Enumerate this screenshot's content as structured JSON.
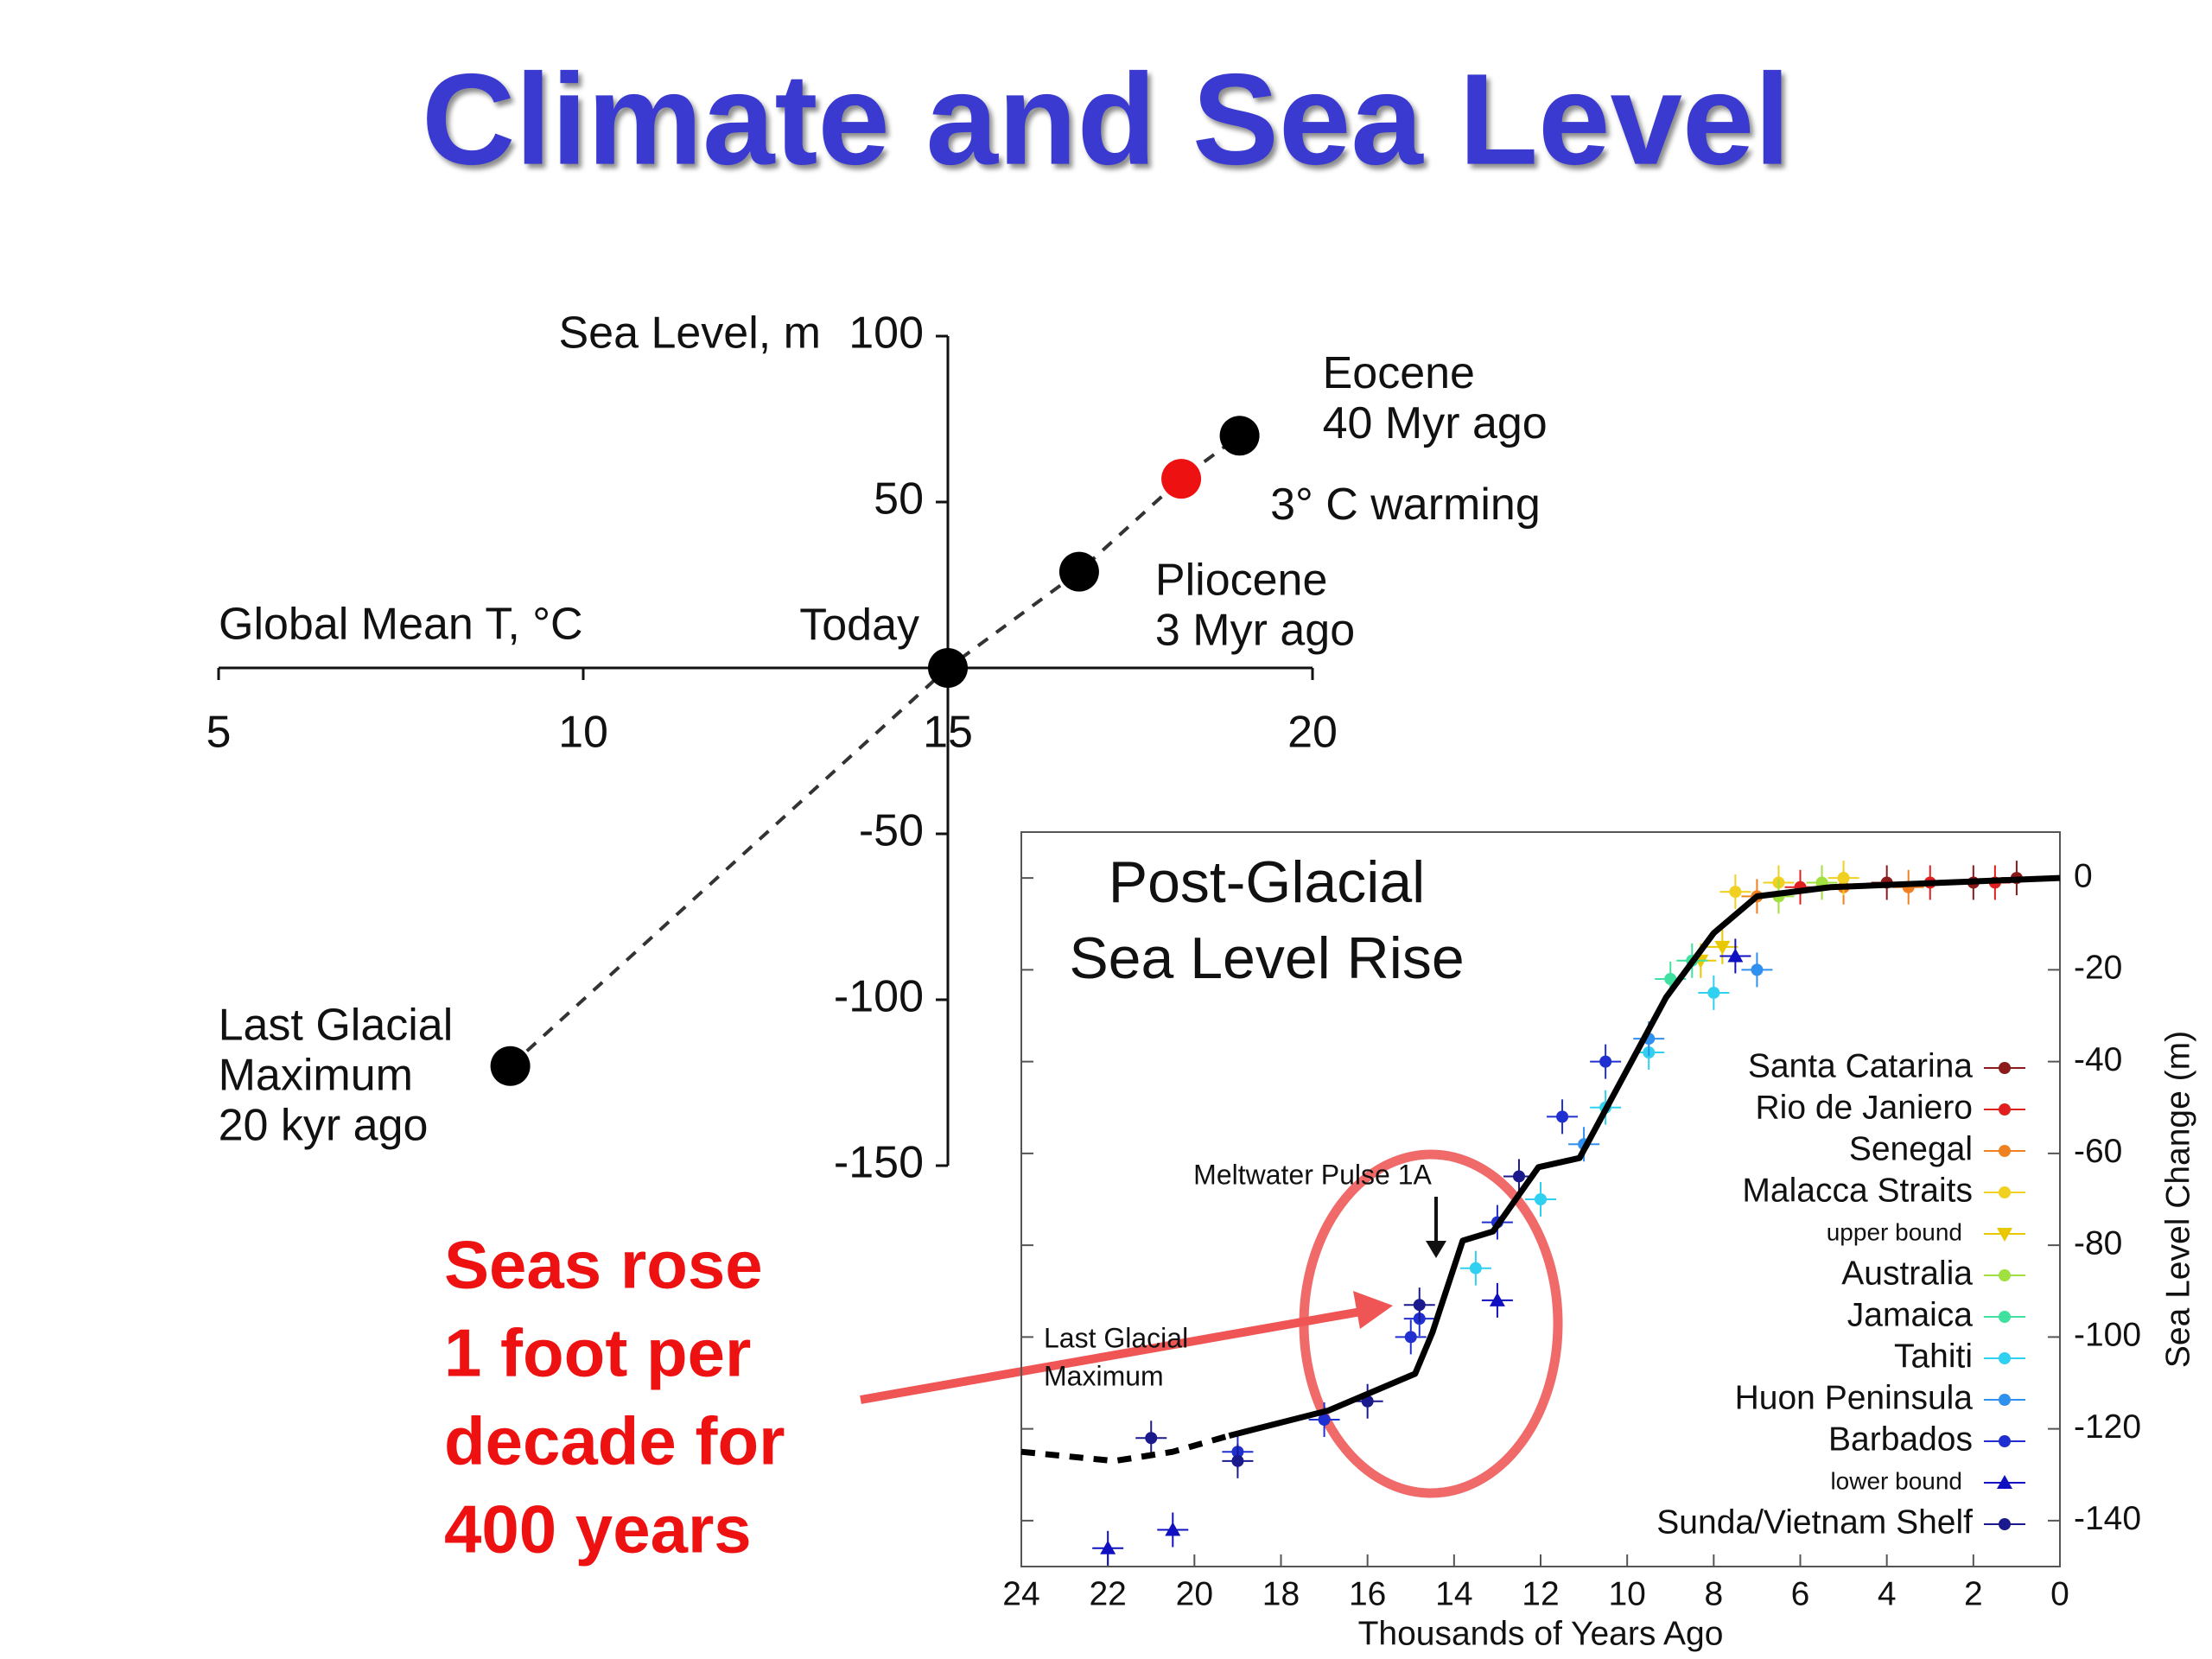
{
  "title": "Climate and Sea Level",
  "annotation": [
    "Seas rose",
    "1 foot per",
    "decade for",
    "400 years"
  ],
  "chart_data": [
    {
      "type": "scatter",
      "x_label": "Global Mean T, °C",
      "y_label": "Sea Level, m",
      "xlim": [
        5,
        20
      ],
      "xticks": [
        5,
        10,
        15,
        20
      ],
      "ylim": [
        -150,
        100
      ],
      "yticks": [
        -150,
        -100,
        -50,
        50,
        100
      ],
      "x": [
        9,
        15,
        16.8,
        18.2,
        19
      ],
      "values": [
        -120,
        0,
        29,
        57,
        70
      ],
      "colors": [
        "#000000",
        "#000000",
        "#000000",
        "#ee1111",
        "#000000"
      ],
      "point_labels": [
        [
          "Last Glacial",
          "Maximum",
          "20 kyr ago"
        ],
        [
          "Today"
        ],
        [
          "Pliocene",
          "3 Myr ago"
        ],
        [
          "3° C warming"
        ],
        [
          "Eocene",
          "40 Myr ago"
        ]
      ],
      "trend_line": "dashed"
    },
    {
      "type": "line",
      "title": [
        "Post-Glacial",
        "Sea Level Rise"
      ],
      "x_label": "Thousands of Years Ago",
      "y_label": "Sea Level Change (m)",
      "xlim": [
        24,
        0
      ],
      "xticks": [
        24,
        22,
        20,
        18,
        16,
        14,
        12,
        10,
        8,
        6,
        4,
        2,
        0
      ],
      "ylim": [
        -150,
        10
      ],
      "yticks": [
        0,
        -20,
        -40,
        -60,
        -80,
        -100,
        -120,
        -140
      ],
      "y_axis_side": "right",
      "annotations": [
        {
          "text": [
            "Meltwater Pulse 1A"
          ],
          "x": 14.5,
          "y": -82
        },
        {
          "text": [
            "Last Glacial",
            "Maximum"
          ],
          "x": 23.5,
          "y": -104
        }
      ],
      "lines": [
        {
          "style": "dashed",
          "color": "#000000",
          "x": [
            24,
            21.85,
            20.5,
            19.2
          ],
          "values": [
            -125,
            -127,
            -125,
            -121.5
          ]
        },
        {
          "style": "solid",
          "color": "#000000",
          "x": [
            19.2,
            16.9,
            14.9,
            14.5,
            13.8,
            13.1,
            12.05,
            11.1,
            9.1,
            8,
            7,
            5.3,
            0
          ],
          "values": [
            -121.5,
            -116,
            -108,
            -99,
            -79,
            -77,
            -63,
            -61,
            -26,
            -12,
            -4,
            -2,
            0
          ]
        }
      ],
      "series": [
        {
          "name": "Santa Catarina",
          "color": "#8b1a1a",
          "marker": "dot",
          "x": [
            4,
            2,
            1
          ],
          "values": [
            -1,
            -1,
            0
          ]
        },
        {
          "name": "Rio de Janiero",
          "color": "#e02020",
          "marker": "dot",
          "x": [
            6,
            3,
            1.5
          ],
          "values": [
            -2,
            -1,
            -1
          ]
        },
        {
          "name": "Senegal",
          "color": "#f08020",
          "marker": "dot",
          "x": [
            7,
            5,
            3.5
          ],
          "values": [
            -4,
            -2,
            -2
          ]
        },
        {
          "name": "Malacca Straits",
          "color": "#f0d020",
          "marker": "dot",
          "x": [
            7.5,
            6.5,
            5
          ],
          "values": [
            -3,
            -1,
            0
          ]
        },
        {
          "name": "upper bound",
          "color": "#e8c800",
          "marker": "triangle-down",
          "x": [
            8.3,
            7.8
          ],
          "values": [
            -18,
            -15
          ]
        },
        {
          "name": "Australia",
          "color": "#a0e040",
          "marker": "dot",
          "x": [
            6.5,
            5.5
          ],
          "values": [
            -4,
            -1
          ]
        },
        {
          "name": "Jamaica",
          "color": "#40e0a0",
          "marker": "dot",
          "x": [
            8.5,
            9
          ],
          "values": [
            -18,
            -22
          ]
        },
        {
          "name": "Tahiti",
          "color": "#30d0f0",
          "marker": "dot",
          "x": [
            13.5,
            12,
            10.5,
            9.5,
            8
          ],
          "values": [
            -85,
            -70,
            -50,
            -38,
            -25
          ]
        },
        {
          "name": "Huon Peninsula",
          "color": "#3090f0",
          "marker": "dot",
          "x": [
            11,
            9.5,
            7
          ],
          "values": [
            -58,
            -35,
            -20
          ]
        },
        {
          "name": "Barbados",
          "color": "#2030d0",
          "marker": "dot",
          "x": [
            19,
            17,
            15,
            14.8,
            13,
            11.5,
            10.5
          ],
          "values": [
            -125,
            -118,
            -100,
            -96,
            -75,
            -52,
            -40
          ]
        },
        {
          "name": "lower bound",
          "color": "#1010c0",
          "marker": "triangle-up",
          "x": [
            22,
            20.5,
            13,
            7.5
          ],
          "values": [
            -146,
            -142,
            -92,
            -17
          ]
        },
        {
          "name": "Sunda/Vietnam Shelf",
          "color": "#1a1a8c",
          "marker": "dot",
          "x": [
            21,
            19,
            16,
            14.8,
            12.5
          ],
          "values": [
            -122,
            -127,
            -114,
            -93,
            -65
          ]
        }
      ]
    }
  ]
}
